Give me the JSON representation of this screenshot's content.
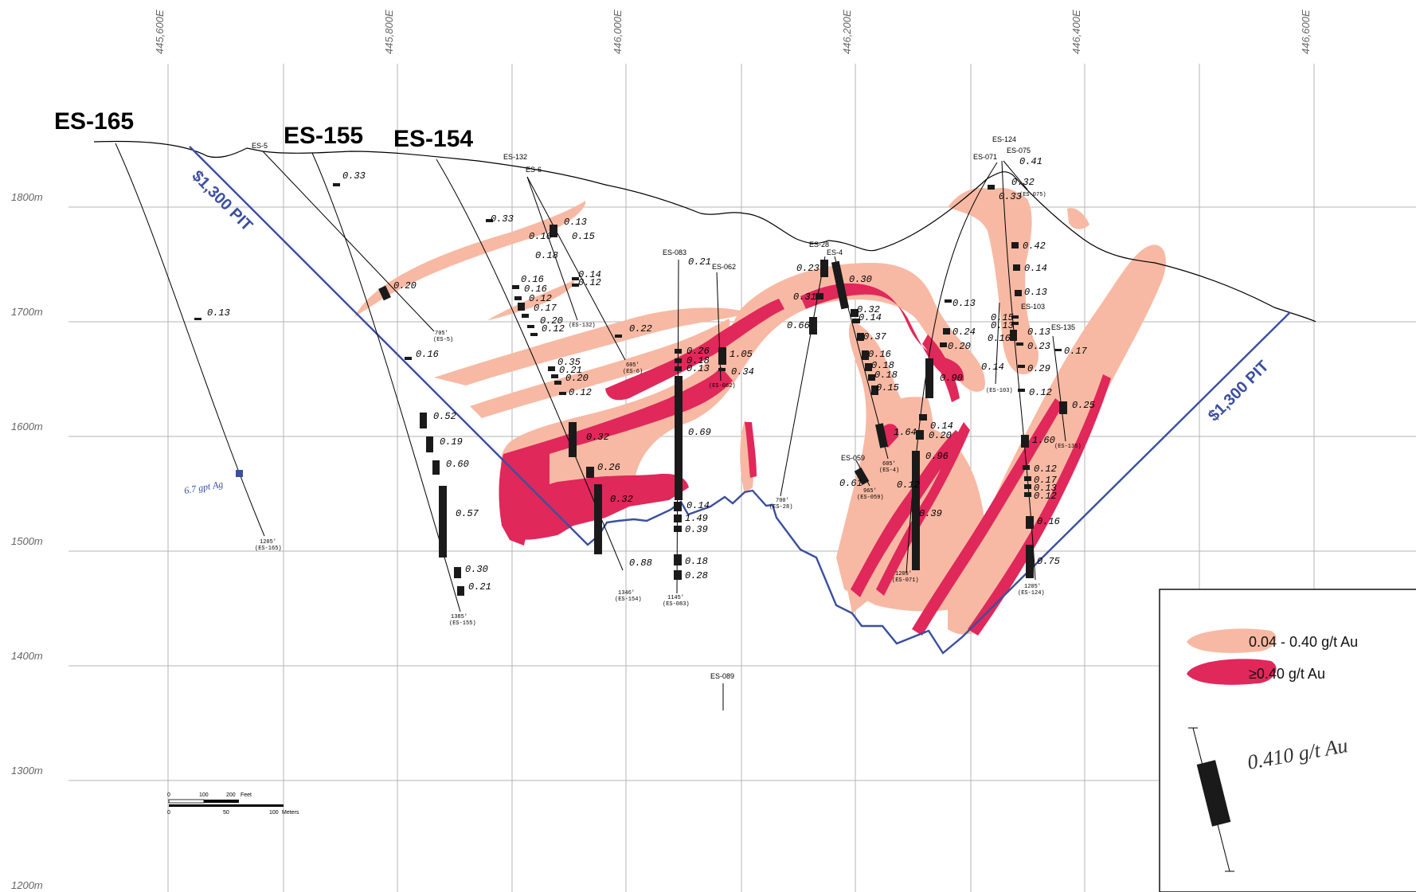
{
  "eastings": [
    "445,600E",
    "445,800E",
    "446,000E",
    "446,200E",
    "446,400E",
    "446,600E"
  ],
  "elevations": [
    "1800m",
    "1700m",
    "1600m",
    "1500m",
    "1400m",
    "1300m",
    "1200m"
  ],
  "pit_label": "$1,300 PIT",
  "holes": {
    "es165": "ES-165",
    "es155": "ES-155",
    "es154": "ES-154",
    "es5": "ES-5",
    "es132": "ES-132",
    "es6": "ES-6",
    "es083": "ES-083",
    "es062": "ES-062",
    "es28": "ES-28",
    "es4": "ES-4",
    "es124": "ES-124",
    "es075": "ES-075",
    "es071": "ES-071",
    "es103": "ES-103",
    "es135": "ES-135",
    "es059": "ES-059",
    "es089": "ES-089"
  },
  "hole_ends": {
    "es165": [
      "1205'",
      "(ES-165)"
    ],
    "es5": [
      "705'",
      "(ES-5)"
    ],
    "es155": [
      "1385'",
      "(ES-155)"
    ],
    "es132": [
      "(ES-132)"
    ],
    "es6": [
      "605'",
      "(ES-6)"
    ],
    "es154": [
      "1346'",
      "(ES-154)"
    ],
    "es083": [
      "1145'",
      "(ES-083)"
    ],
    "es062": [
      "(ES-062)"
    ],
    "es28": [
      "700'",
      "(ES-28)"
    ],
    "es4": [
      "605'",
      "(ES-4)"
    ],
    "es059": [
      "965'",
      "(ES-059)"
    ],
    "es071": [
      "1205'",
      "(ES-071)"
    ],
    "es124": [
      "1205'",
      "(ES-124)"
    ],
    "es103": [
      "(ES-103)"
    ],
    "es135": [
      "(ES-135)"
    ],
    "es075": [
      "(ES-075)"
    ]
  },
  "assays": [
    "0.13",
    "0.33",
    "0.20",
    "0.16",
    "0.52",
    "0.19",
    "0.60",
    "0.57",
    "0.30",
    "0.21",
    "0.33",
    "0.16",
    "0.16",
    "0.12",
    "0.17",
    "0.20",
    "0.12",
    "0.35",
    "0.21",
    "0.20",
    "0.12",
    "0.32",
    "0.26",
    "0.32",
    "0.88",
    "0.16",
    "0.13",
    "0.18",
    "0.15",
    "0.14",
    "0.12",
    "0.22",
    "0.21",
    "0.26",
    "0.18",
    "0.13",
    "0.69",
    "0.14",
    "1.49",
    "0.39",
    "0.18",
    "0.28",
    "1.05",
    "0.34",
    "0.23",
    "0.31",
    "0.66",
    "0.30",
    "0.32",
    "0.14",
    "0.37",
    "0.16",
    "0.18",
    "0.18",
    "0.15",
    "1.64",
    "0.61",
    "0.13",
    "0.24",
    "0.20",
    "0.90",
    "0.14",
    "0.20",
    "0.96",
    "0.12",
    "0.39",
    "0.41",
    "0.32",
    "0.33",
    "0.42",
    "0.14",
    "0.13",
    "0.15",
    "0.13",
    "0.13",
    "0.16",
    "0.23",
    "0.14",
    "0.29",
    "0.12",
    "0.17",
    "0.25",
    "1.60",
    "0.12",
    "0.17",
    "0.13",
    "0.12",
    "0.16",
    "0.75"
  ],
  "ag_label": "6.7 gpt Ag",
  "scale": {
    "top_ticks": [
      "0",
      "100",
      "200"
    ],
    "top_unit": "Feet",
    "bottom_ticks": [
      "0",
      "50",
      "100"
    ],
    "bottom_unit": "Meters"
  },
  "legend": {
    "low": "0.04 - 0.40 g/t Au",
    "high": "≥0.40 g/t Au",
    "sample": "0.410 g/t Au",
    "low_color": "#f7b9a3",
    "high_color": "#e0285a"
  },
  "colors": {
    "pit": "#3a4fa0",
    "low": "#f7b9a3",
    "high": "#e0285a"
  }
}
